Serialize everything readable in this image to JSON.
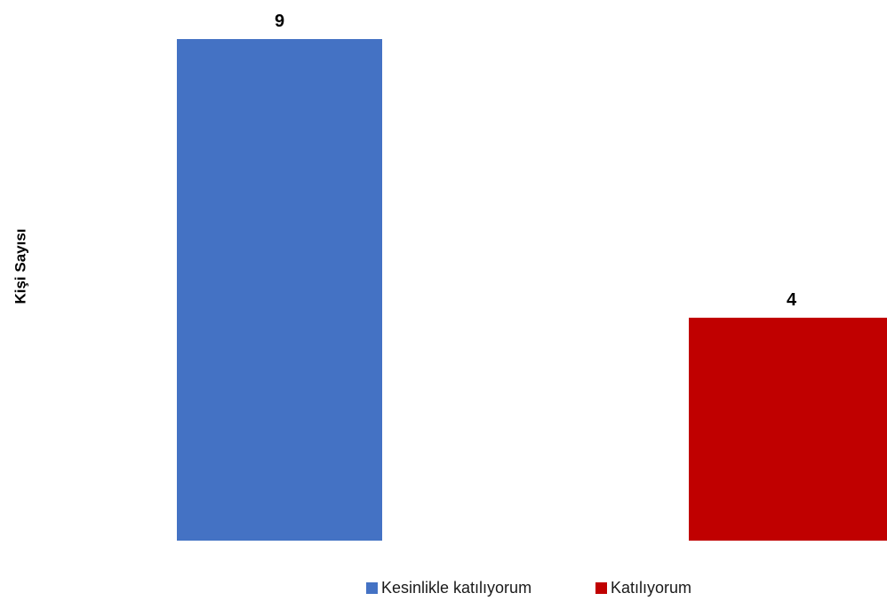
{
  "chart_data": {
    "type": "bar",
    "title": "",
    "xlabel": "",
    "ylabel": "Kişi Sayısı",
    "ylim": [
      0,
      9
    ],
    "grid": false,
    "legend_position": "bottom",
    "series": [
      {
        "name": "Kesinlikle katılıyorum",
        "value": 9,
        "color": "#4472C4"
      },
      {
        "name": "Katılıyorum",
        "value": 4,
        "color": "#C00000"
      }
    ]
  }
}
